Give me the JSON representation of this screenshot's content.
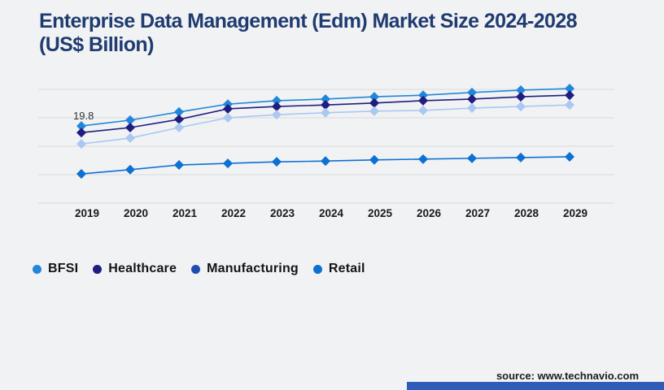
{
  "title": {
    "line1": "Enterprise Data Management (Edm) Market Size 2024-2028",
    "line2": "(US$ Billion)"
  },
  "annotation": {
    "text": "19.8",
    "series": "BFSI",
    "year": "2019"
  },
  "source": {
    "label": "source: www.technavio.com"
  },
  "colors": {
    "background": "#f1f2f4",
    "title": "#1f3b70",
    "gridline": "#d9dadc",
    "axis_label": "#1a1a1a",
    "annotation": "#333333",
    "accent_bar": "#2e5cb8"
  },
  "chart_data": {
    "type": "line",
    "x": [
      "2019",
      "2020",
      "2021",
      "2022",
      "2023",
      "2024",
      "2025",
      "2026",
      "2027",
      "2028",
      "2029"
    ],
    "series": [
      {
        "name": "BFSI",
        "color": "#2287d9",
        "values": [
          19.8,
          21.3,
          23.4,
          25.4,
          26.3,
          26.7,
          27.3,
          27.7,
          28.4,
          29.0,
          29.4
        ]
      },
      {
        "name": "Healthcare",
        "color": "#201d80",
        "values": [
          18.1,
          19.4,
          21.5,
          24.2,
          24.8,
          25.2,
          25.7,
          26.3,
          26.7,
          27.3,
          27.7
        ]
      },
      {
        "name": "Manufacturing",
        "color": "#aac8f2",
        "legend_color": "#1d4dad",
        "values": [
          15.2,
          16.7,
          19.4,
          21.9,
          22.7,
          23.2,
          23.6,
          23.8,
          24.4,
          24.8,
          25.2
        ]
      },
      {
        "name": "Retail",
        "color": "#0d70d3",
        "values": [
          7.5,
          8.6,
          9.8,
          10.2,
          10.6,
          10.8,
          11.1,
          11.3,
          11.5,
          11.7,
          11.9
        ]
      }
    ],
    "ylim": [
      0,
      29.2
    ],
    "grid": true,
    "marker": "diamond",
    "legend_position": "bottom",
    "title": "Enterprise Data Management (Edm) Market Size 2024-2028 (US$ Billion)",
    "xlabel": "",
    "ylabel": ""
  }
}
